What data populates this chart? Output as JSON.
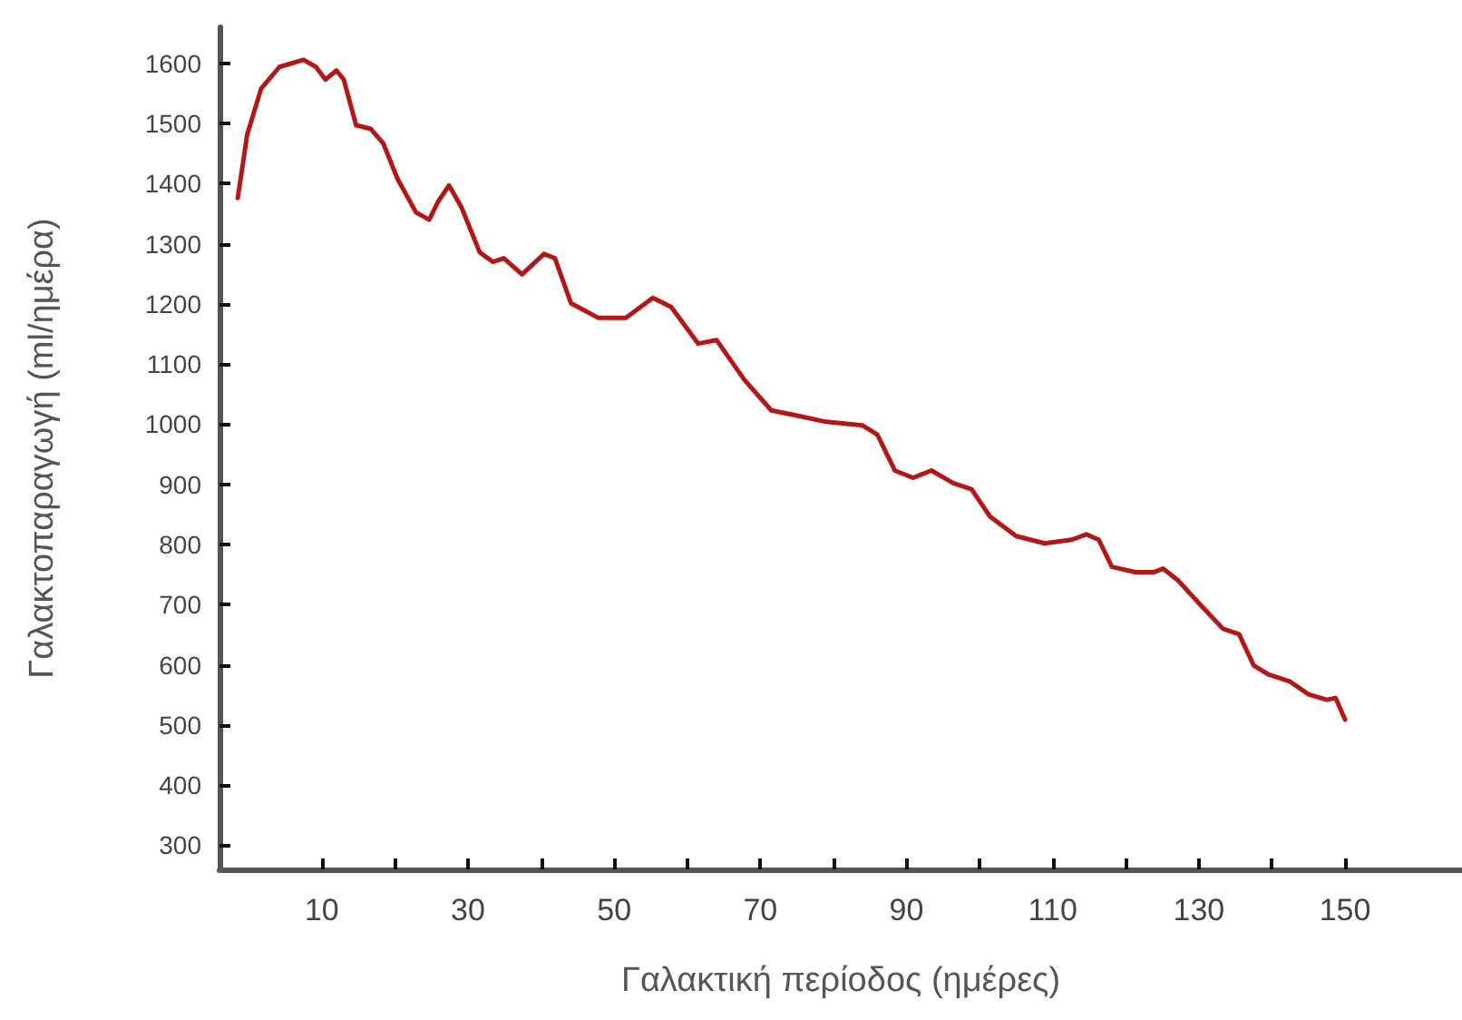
{
  "chart_data": {
    "type": "line",
    "xlabel": "Γαλακτική περίοδος (ημέρες)",
    "ylabel": "Γαλακτοπαραγωγή (ml/ημέρα)",
    "x": [
      -1.5,
      -0.2,
      1.7,
      4.2,
      7.5,
      9.2,
      10.5,
      12,
      13,
      14.7,
      16.7,
      18.4,
      20.4,
      22.9,
      24.7,
      25.9,
      27.4,
      29.1,
      31.6,
      33.4,
      34.9,
      37.4,
      40.4,
      41.9,
      44.1,
      47.8,
      51.6,
      55.3,
      57.8,
      61.5,
      64,
      67.8,
      71.5,
      75.2,
      79,
      84,
      86,
      88.4,
      90.9,
      93.4,
      96.4,
      98.9,
      101.4,
      105,
      108.9,
      112.6,
      114.6,
      116.3,
      118.1,
      121.3,
      123.8,
      125.1,
      127.1,
      130.5,
      133.3,
      135.5,
      137.5,
      139.5,
      142.5,
      145,
      147.5,
      148.7,
      150
    ],
    "series": [
      {
        "color": "#b51717",
        "values": [
          1376,
          1482,
          1558,
          1594,
          1606,
          1594,
          1573,
          1588,
          1573,
          1497,
          1491,
          1467,
          1407,
          1352,
          1340,
          1370,
          1397,
          1361,
          1286,
          1270,
          1276,
          1249,
          1283,
          1276,
          1201,
          1177,
          1177,
          1210,
          1195,
          1134,
          1140,
          1074,
          1023,
          1014,
          1004,
          998,
          983,
          923,
          911,
          923,
          902,
          892,
          847,
          814,
          802,
          808,
          817,
          808,
          763,
          754,
          754,
          760,
          741,
          696,
          660,
          651,
          599,
          584,
          572,
          551,
          542,
          545,
          509
        ]
      }
    ],
    "xlim": [
      -4,
      166
    ],
    "xticks": [
      10,
      {
        "value": 20,
        "label": null
      },
      30,
      {
        "value": 40,
        "label": null
      },
      50,
      {
        "value": 60,
        "label": null
      },
      70,
      {
        "value": 80,
        "label": null
      },
      90,
      {
        "value": 100,
        "label": null
      },
      110,
      {
        "value": 120,
        "label": null
      },
      130,
      {
        "value": 140,
        "label": null
      },
      150
    ],
    "ylim": [
      260,
      1660
    ],
    "yticks": [
      300,
      400,
      500,
      600,
      700,
      800,
      900,
      1000,
      1100,
      1200,
      1300,
      1400,
      1500,
      1600
    ],
    "grid": false,
    "marker": "none",
    "line_style": "solid"
  }
}
